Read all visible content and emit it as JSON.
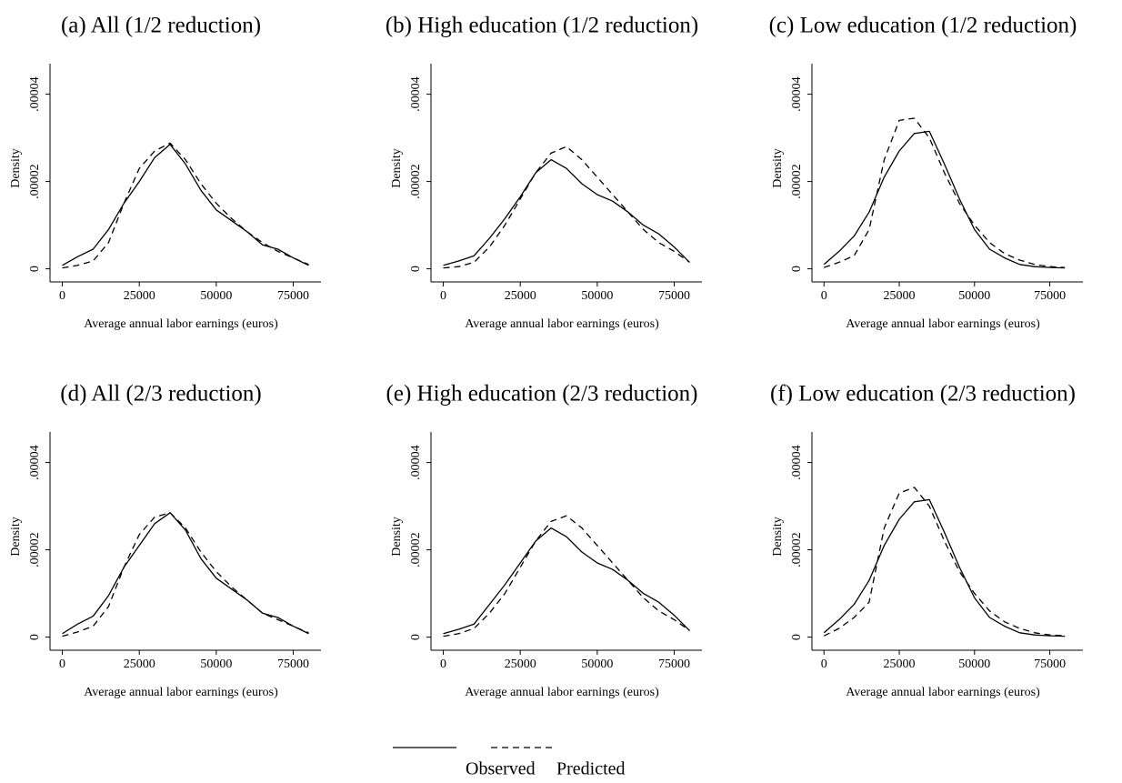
{
  "chart_data": [
    {
      "type": "line",
      "title": "(a) All (1/2 reduction)",
      "xlabel": "Average annual labor earnings (euros)",
      "ylabel": "Density",
      "x": [
        0,
        5000,
        10000,
        15000,
        20000,
        25000,
        30000,
        35000,
        40000,
        45000,
        50000,
        55000,
        60000,
        65000,
        70000,
        75000,
        80000
      ],
      "series": [
        {
          "name": "Observed",
          "color": "#000000",
          "dash": "solid",
          "values": [
            8e-07,
            2.8e-06,
            4.5e-06,
            9e-06,
            1.5e-05,
            2e-05,
            2.55e-05,
            2.85e-05,
            2.4e-05,
            1.8e-05,
            1.35e-05,
            1.1e-05,
            8.5e-06,
            5.5e-06,
            4.5e-06,
            2.5e-06,
            8e-07
          ]
        },
        {
          "name": "Predicted",
          "color": "#000000",
          "dash": "dashed",
          "values": [
            2e-07,
            8e-07,
            1.8e-06,
            6e-06,
            1.5e-05,
            2.3e-05,
            2.7e-05,
            2.88e-05,
            2.5e-05,
            1.95e-05,
            1.5e-05,
            1.15e-05,
            8.5e-06,
            6e-06,
            4e-06,
            2.5e-06,
            1e-06
          ]
        }
      ],
      "xlim": [
        -4000,
        84000
      ],
      "ylim": [
        -3e-06,
        4.7e-05
      ],
      "xticks": [
        0,
        25000,
        50000,
        75000
      ],
      "yticks": [
        {
          "value": 0,
          "label": "0"
        },
        {
          "value": 2e-05,
          "label": ".00002"
        },
        {
          "value": 4e-05,
          "label": ".00004"
        }
      ]
    },
    {
      "type": "line",
      "title": "(b) High education (1/2 reduction)",
      "xlabel": "Average annual labor earnings (euros)",
      "ylabel": "Density",
      "x": [
        0,
        5000,
        10000,
        15000,
        20000,
        25000,
        30000,
        35000,
        40000,
        45000,
        50000,
        55000,
        60000,
        65000,
        70000,
        75000,
        80000
      ],
      "series": [
        {
          "name": "Observed",
          "color": "#000000",
          "dash": "solid",
          "values": [
            8e-07,
            1.8e-06,
            3e-06,
            7e-06,
            1.15e-05,
            1.65e-05,
            2.2e-05,
            2.5e-05,
            2.3e-05,
            1.95e-05,
            1.7e-05,
            1.55e-05,
            1.3e-05,
            1e-05,
            8e-06,
            5e-06,
            1.5e-06
          ]
        },
        {
          "name": "Predicted",
          "color": "#000000",
          "dash": "dashed",
          "values": [
            2e-07,
            5e-07,
            1.5e-06,
            5e-06,
            1e-05,
            1.6e-05,
            2.2e-05,
            2.65e-05,
            2.8e-05,
            2.5e-05,
            2.1e-05,
            1.7e-05,
            1.3e-05,
            9e-06,
            6e-06,
            4e-06,
            1.5e-06
          ]
        }
      ],
      "xlim": [
        -4000,
        84000
      ],
      "ylim": [
        -3e-06,
        4.7e-05
      ],
      "xticks": [
        0,
        25000,
        50000,
        75000
      ],
      "yticks": [
        {
          "value": 0,
          "label": "0"
        },
        {
          "value": 2e-05,
          "label": ".00002"
        },
        {
          "value": 4e-05,
          "label": ".00004"
        }
      ]
    },
    {
      "type": "line",
      "title": "(c) Low education (1/2 reduction)",
      "xlabel": "Average annual labor earnings (euros)",
      "ylabel": "Density",
      "x": [
        0,
        5000,
        10000,
        15000,
        20000,
        25000,
        30000,
        35000,
        40000,
        45000,
        50000,
        55000,
        60000,
        65000,
        70000,
        75000,
        80000
      ],
      "series": [
        {
          "name": "Observed",
          "color": "#000000",
          "dash": "solid",
          "values": [
            1e-06,
            4e-06,
            7.5e-06,
            1.3e-05,
            2.1e-05,
            2.7e-05,
            3.1e-05,
            3.15e-05,
            2.4e-05,
            1.6e-05,
            9e-06,
            4.5e-06,
            2.5e-06,
            1e-06,
            5e-07,
            3e-07,
            2e-07
          ]
        },
        {
          "name": "Predicted",
          "color": "#000000",
          "dash": "dashed",
          "values": [
            3e-07,
            1.5e-06,
            3e-06,
            9e-06,
            2.5e-05,
            3.4e-05,
            3.45e-05,
            3e-05,
            2.2e-05,
            1.5e-05,
            1e-05,
            6e-06,
            3.5e-06,
            2e-06,
            1e-06,
            5e-07,
            3e-07
          ]
        }
      ],
      "xlim": [
        -4000,
        86000
      ],
      "ylim": [
        -3e-06,
        4.7e-05
      ],
      "xticks": [
        0,
        25000,
        50000,
        75000
      ],
      "yticks": [
        {
          "value": 0,
          "label": "0"
        },
        {
          "value": 2e-05,
          "label": ".00002"
        },
        {
          "value": 4e-05,
          "label": ".00004"
        }
      ]
    },
    {
      "type": "line",
      "title": "(d) All (2/3 reduction)",
      "xlabel": "Average annual labor earnings (euros)",
      "ylabel": "Density",
      "x": [
        0,
        5000,
        10000,
        15000,
        20000,
        25000,
        30000,
        35000,
        40000,
        45000,
        50000,
        55000,
        60000,
        65000,
        70000,
        75000,
        80000
      ],
      "series": [
        {
          "name": "Observed",
          "color": "#000000",
          "dash": "solid",
          "values": [
            8e-07,
            3e-06,
            4.8e-06,
            9.5e-06,
            1.6e-05,
            2.1e-05,
            2.6e-05,
            2.85e-05,
            2.45e-05,
            1.8e-05,
            1.35e-05,
            1.1e-05,
            8.5e-06,
            5.5e-06,
            4.5e-06,
            2.5e-06,
            8e-07
          ]
        },
        {
          "name": "Predicted",
          "color": "#000000",
          "dash": "dashed",
          "values": [
            2e-07,
            1.2e-06,
            2.5e-06,
            7e-06,
            1.6e-05,
            2.35e-05,
            2.75e-05,
            2.85e-05,
            2.5e-05,
            1.95e-05,
            1.5e-05,
            1.15e-05,
            8.5e-06,
            5.5e-06,
            4e-06,
            2.5e-06,
            1e-06
          ]
        }
      ],
      "xlim": [
        -4000,
        84000
      ],
      "ylim": [
        -3e-06,
        4.7e-05
      ],
      "xticks": [
        0,
        25000,
        50000,
        75000
      ],
      "yticks": [
        {
          "value": 0,
          "label": "0"
        },
        {
          "value": 2e-05,
          "label": ".00002"
        },
        {
          "value": 4e-05,
          "label": ".00004"
        }
      ]
    },
    {
      "type": "line",
      "title": "(e) High education (2/3 reduction)",
      "xlabel": "Average annual labor earnings (euros)",
      "ylabel": "Density",
      "x": [
        0,
        5000,
        10000,
        15000,
        20000,
        25000,
        30000,
        35000,
        40000,
        45000,
        50000,
        55000,
        60000,
        65000,
        70000,
        75000,
        80000
      ],
      "series": [
        {
          "name": "Observed",
          "color": "#000000",
          "dash": "solid",
          "values": [
            8e-07,
            1.8e-06,
            3e-06,
            7.5e-06,
            1.2e-05,
            1.7e-05,
            2.2e-05,
            2.5e-05,
            2.3e-05,
            1.95e-05,
            1.7e-05,
            1.55e-05,
            1.3e-05,
            1e-05,
            8e-06,
            5e-06,
            1.5e-06
          ]
        },
        {
          "name": "Predicted",
          "color": "#000000",
          "dash": "dashed",
          "values": [
            2e-07,
            8e-07,
            2e-06,
            5.5e-06,
            1e-05,
            1.6e-05,
            2.2e-05,
            2.65e-05,
            2.78e-05,
            2.5e-05,
            2.1e-05,
            1.7e-05,
            1.3e-05,
            9e-06,
            6e-06,
            4e-06,
            1.5e-06
          ]
        }
      ],
      "xlim": [
        -4000,
        84000
      ],
      "ylim": [
        -3e-06,
        4.7e-05
      ],
      "xticks": [
        0,
        25000,
        50000,
        75000
      ],
      "yticks": [
        {
          "value": 0,
          "label": "0"
        },
        {
          "value": 2e-05,
          "label": ".00002"
        },
        {
          "value": 4e-05,
          "label": ".00004"
        }
      ]
    },
    {
      "type": "line",
      "title": "(f) Low education (2/3 reduction)",
      "xlabel": "Average annual labor earnings (euros)",
      "ylabel": "Density",
      "x": [
        0,
        5000,
        10000,
        15000,
        20000,
        25000,
        30000,
        35000,
        40000,
        45000,
        50000,
        55000,
        60000,
        65000,
        70000,
        75000,
        80000
      ],
      "series": [
        {
          "name": "Observed",
          "color": "#000000",
          "dash": "solid",
          "values": [
            1e-06,
            4e-06,
            7.5e-06,
            1.3e-05,
            2.1e-05,
            2.7e-05,
            3.1e-05,
            3.15e-05,
            2.4e-05,
            1.6e-05,
            9e-06,
            4.5e-06,
            2.5e-06,
            1e-06,
            5e-07,
            3e-07,
            2e-07
          ]
        },
        {
          "name": "Predicted",
          "color": "#000000",
          "dash": "dashed",
          "values": [
            3e-07,
            2e-06,
            4.5e-06,
            8e-06,
            2.5e-05,
            3.3e-05,
            3.43e-05,
            3e-05,
            2.2e-05,
            1.5e-05,
            1e-05,
            6e-06,
            3.5e-06,
            2e-06,
            1e-06,
            5e-07,
            3e-07
          ]
        }
      ],
      "xlim": [
        -4000,
        86000
      ],
      "ylim": [
        -3e-06,
        4.7e-05
      ],
      "xticks": [
        0,
        25000,
        50000,
        75000
      ],
      "yticks": [
        {
          "value": 0,
          "label": "0"
        },
        {
          "value": 2e-05,
          "label": ".00002"
        },
        {
          "value": 4e-05,
          "label": ".00004"
        }
      ]
    }
  ]
}
